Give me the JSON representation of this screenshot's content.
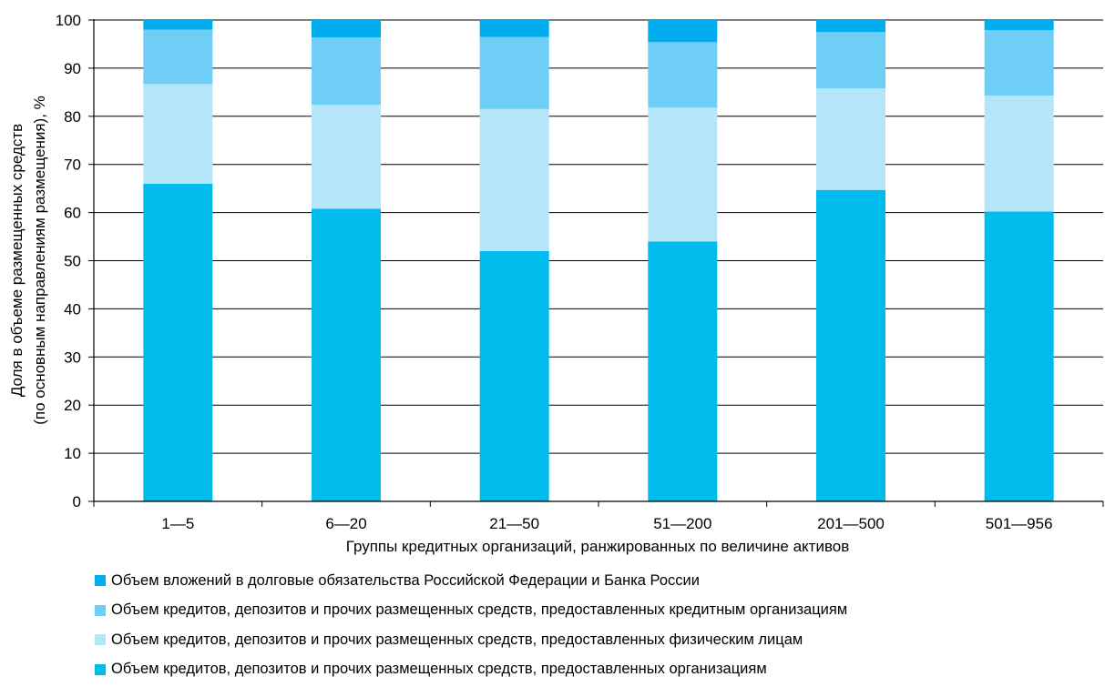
{
  "chart_data": {
    "type": "bar",
    "stacked": true,
    "categories": [
      "1—5",
      "6—20",
      "21—50",
      "51—200",
      "201—500",
      "501—956"
    ],
    "series": [
      {
        "name": "Объем кредитов, депозитов и прочих размещенных средств, предоставленных организациям",
        "color": "#00bced",
        "values": [
          66.0,
          60.8,
          52.0,
          54.0,
          64.7,
          60.2
        ]
      },
      {
        "name": "Объем кредитов, депозитов и прочих размещенных средств, предоставленных физическим лицам",
        "color": "#b5e5f9",
        "values": [
          20.7,
          21.6,
          29.5,
          27.8,
          21.1,
          24.1
        ]
      },
      {
        "name": "Объем кредитов, депозитов и прочих размещенных средств, предоставленных кредитным организациям",
        "color": "#6ecef5",
        "values": [
          11.3,
          14.0,
          15.0,
          13.6,
          11.7,
          13.6
        ]
      },
      {
        "name": "Объем вложений в  долговые обязательства Российской Федерации и Банка России",
        "color": "#00aeef",
        "values": [
          2.0,
          3.6,
          3.5,
          4.6,
          2.5,
          2.1
        ]
      }
    ],
    "ylim": [
      0,
      100
    ],
    "yticks": [
      "0",
      "10",
      "20",
      "30",
      "40",
      "50",
      "60",
      "70",
      "80",
      "90",
      "100"
    ],
    "ylabel_line1": "Доля в объеме размещенных средств",
    "ylabel_line2": "(по основным направлениям размещения), %",
    "xlabel": "Группы кредитных организаций, ранжированных по величине активов",
    "grid": true,
    "legend_position": "bottom",
    "legend_order": [
      3,
      2,
      1,
      0
    ]
  }
}
